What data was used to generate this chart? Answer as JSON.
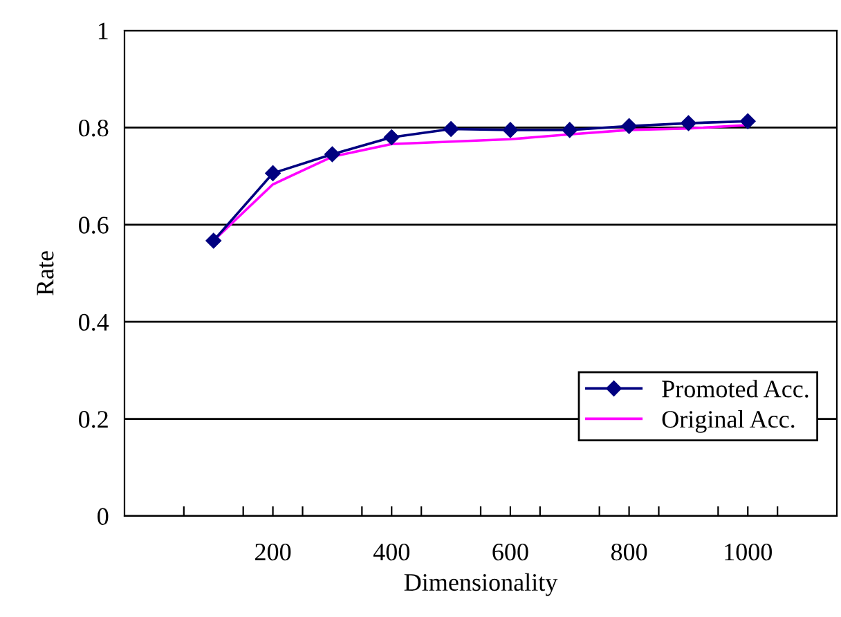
{
  "chart_data": {
    "type": "line",
    "xlabel": "Dimensionality",
    "ylabel": "Rate",
    "x": [
      100,
      200,
      300,
      400,
      500,
      600,
      700,
      800,
      900,
      1000
    ],
    "series": [
      {
        "name": "Promoted Acc.",
        "color": "#000080",
        "marker": "diamond",
        "values": [
          0.567,
          0.706,
          0.745,
          0.78,
          0.797,
          0.795,
          0.795,
          0.803,
          0.809,
          0.813
        ]
      },
      {
        "name": "Original Acc.",
        "color": "#ff00ff",
        "marker": "none",
        "values": [
          0.567,
          0.683,
          0.74,
          0.766,
          0.771,
          0.776,
          0.786,
          0.795,
          0.798,
          0.805
        ]
      }
    ],
    "xlim": [
      -50,
      1150
    ],
    "xticks": [
      {
        "value": 50,
        "label": null
      },
      {
        "value": 150,
        "label": null
      },
      {
        "value": 200,
        "label": "200"
      },
      {
        "value": 250,
        "label": null
      },
      {
        "value": 350,
        "label": null
      },
      {
        "value": 400,
        "label": "400"
      },
      {
        "value": 450,
        "label": null
      },
      {
        "value": 550,
        "label": null
      },
      {
        "value": 600,
        "label": "600"
      },
      {
        "value": 650,
        "label": null
      },
      {
        "value": 750,
        "label": null
      },
      {
        "value": 800,
        "label": "800"
      },
      {
        "value": 850,
        "label": null
      },
      {
        "value": 950,
        "label": null
      },
      {
        "value": 1000,
        "label": "1000"
      },
      {
        "value": 1050,
        "label": null
      }
    ],
    "ylim": [
      0,
      1
    ],
    "yticks": [
      0,
      0.2,
      0.4,
      0.6,
      0.8,
      1
    ],
    "grid": "y",
    "legend": "bottom right"
  }
}
